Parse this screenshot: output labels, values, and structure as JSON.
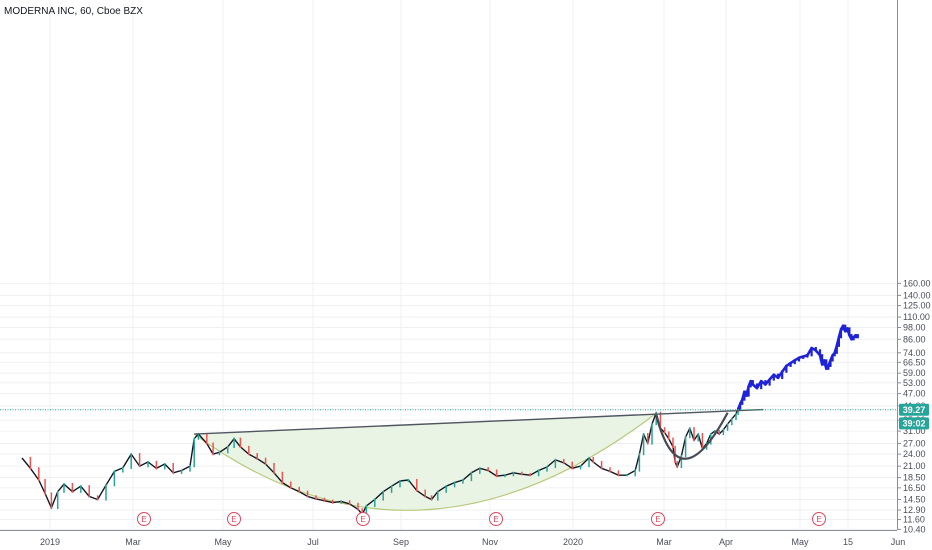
{
  "title": "MODERNA INC, 60, Cboe BZX",
  "chart_data": {
    "type": "candlestick",
    "title": "MODERNA INC, 60, Cboe BZX",
    "scale": "log",
    "ylim": [
      10.4,
      160.0
    ],
    "y_ticks": [
      160.0,
      140.0,
      125.0,
      110.0,
      98.0,
      86.0,
      74.0,
      66.5,
      59.0,
      53.0,
      47.0,
      41.0,
      35.0,
      31.0,
      27.0,
      24.0,
      21.0,
      18.5,
      16.5,
      14.5,
      12.9,
      11.6,
      10.4
    ],
    "y_tick_labels": [
      "160.00",
      "140.00",
      "125.00",
      "110.00",
      "98.00",
      "86.00",
      "74.00",
      "66.50",
      "59.00",
      "53.00",
      "47.00",
      "41.00",
      "35.00",
      "31.00",
      "27.00",
      "24.00",
      "21.00",
      "18.50",
      "16.50",
      "14.50",
      "12.90",
      "11.60",
      "10.40"
    ],
    "x_ticks": [
      "2019",
      "Mar",
      "May",
      "Jul",
      "Sep",
      "Nov",
      "2020",
      "Mar",
      "Apr",
      "May",
      "15",
      "Jun"
    ],
    "grid": true,
    "price_labels": [
      {
        "value": 39.27,
        "label": "39.27",
        "color": "#26a69a"
      },
      {
        "value": 39.02,
        "label": "39:02",
        "color": "#26a69a"
      }
    ],
    "horizontal_line": 39.27,
    "earnings_markers": [
      "E",
      "E",
      "E",
      "E",
      "E",
      "E"
    ],
    "series": [
      {
        "values": [
          [
            0.0,
            23.0
          ],
          [
            2.0,
            20.5
          ],
          [
            4.0,
            18.0
          ],
          [
            5.5,
            15.5
          ],
          [
            7.0,
            13.2
          ],
          [
            8.5,
            15.8
          ],
          [
            10.0,
            17.2
          ],
          [
            12.0,
            15.8
          ],
          [
            14.0,
            16.8
          ],
          [
            16.0,
            15.0
          ],
          [
            18.0,
            14.5
          ],
          [
            20.0,
            17.0
          ],
          [
            22.0,
            19.8
          ],
          [
            24.0,
            20.6
          ],
          [
            26.0,
            24.0
          ],
          [
            28.0,
            21.0
          ],
          [
            30.0,
            22.0
          ],
          [
            32.0,
            20.5
          ],
          [
            34.0,
            21.5
          ],
          [
            36.0,
            19.5
          ],
          [
            38.0,
            20.0
          ],
          [
            40.0,
            21.0
          ],
          [
            41.0,
            28.5
          ],
          [
            42.0,
            30.0
          ],
          [
            44.0,
            27.0
          ],
          [
            45.5,
            24.0
          ],
          [
            47.0,
            24.5
          ],
          [
            49.0,
            26.0
          ],
          [
            50.5,
            28.5
          ],
          [
            52.0,
            26.0
          ],
          [
            54.0,
            24.0
          ],
          [
            56.0,
            22.8
          ],
          [
            58.0,
            21.5
          ],
          [
            60.0,
            19.5
          ],
          [
            62.0,
            17.5
          ],
          [
            64.0,
            16.5
          ],
          [
            66.0,
            15.8
          ],
          [
            68.0,
            15.0
          ],
          [
            70.0,
            14.6
          ],
          [
            72.0,
            14.3
          ],
          [
            74.0,
            14.0
          ],
          [
            76.0,
            14.2
          ],
          [
            78.0,
            13.8
          ],
          [
            80.0,
            13.0
          ],
          [
            81.0,
            12.3
          ],
          [
            82.0,
            13.5
          ],
          [
            84.0,
            14.5
          ],
          [
            86.0,
            15.8
          ],
          [
            88.0,
            16.8
          ],
          [
            90.0,
            17.8
          ],
          [
            92.0,
            18.0
          ],
          [
            94.0,
            16.0
          ],
          [
            96.0,
            15.0
          ],
          [
            97.5,
            14.5
          ],
          [
            99.0,
            15.8
          ],
          [
            101.0,
            16.8
          ],
          [
            103.0,
            17.5
          ],
          [
            105.0,
            18.0
          ],
          [
            107.0,
            19.5
          ],
          [
            109.0,
            20.5
          ],
          [
            111.0,
            20.0
          ],
          [
            113.0,
            18.8
          ],
          [
            115.0,
            19.0
          ],
          [
            117.0,
            19.5
          ],
          [
            119.0,
            19.2
          ],
          [
            121.0,
            19.0
          ],
          [
            123.0,
            20.0
          ],
          [
            125.0,
            20.8
          ],
          [
            127.0,
            22.5
          ],
          [
            129.0,
            21.8
          ],
          [
            131.0,
            20.5
          ],
          [
            133.0,
            21.0
          ],
          [
            135.0,
            23.0
          ],
          [
            136.0,
            22.0
          ],
          [
            138.0,
            20.5
          ],
          [
            140.0,
            19.8
          ],
          [
            142.0,
            19.0
          ],
          [
            144.0,
            19.0
          ],
          [
            146.0,
            20.0
          ],
          [
            147.0,
            24.0
          ],
          [
            148.0,
            30.0
          ],
          [
            149.0,
            27.0
          ],
          [
            150.0,
            33.5
          ],
          [
            151.0,
            38.0
          ],
          [
            152.0,
            32.0
          ],
          [
            153.0,
            30.5
          ],
          [
            154.0,
            28.5
          ],
          [
            155.0,
            26.0
          ],
          [
            155.5,
            22.0
          ],
          [
            156.0,
            20.8
          ],
          [
            157.0,
            23.5
          ],
          [
            158.0,
            29.0
          ],
          [
            159.0,
            32.0
          ],
          [
            160.0,
            28.0
          ],
          [
            161.0,
            30.0
          ],
          [
            162.0,
            25.5
          ],
          [
            163.0,
            27.0
          ],
          [
            164.0,
            30.0
          ],
          [
            165.0,
            31.0
          ],
          [
            166.0,
            30.0
          ],
          [
            167.0,
            31.5
          ],
          [
            168.0,
            33.5
          ],
          [
            169.0,
            35.5
          ],
          [
            170.0,
            37.5
          ],
          [
            170.5,
            40.0
          ]
        ],
        "color": "#131722"
      },
      {
        "values": [
          [
            170.5,
            39.5
          ],
          [
            171.0,
            42.0
          ],
          [
            171.5,
            44.0
          ],
          [
            172.0,
            48.0
          ],
          [
            172.5,
            46.0
          ],
          [
            173.0,
            51.0
          ],
          [
            173.5,
            54.0
          ],
          [
            174.0,
            52.0
          ],
          [
            175.0,
            50.0
          ],
          [
            176.0,
            54.0
          ],
          [
            177.0,
            52.0
          ],
          [
            178.0,
            55.0
          ],
          [
            179.0,
            58.0
          ],
          [
            180.0,
            56.0
          ],
          [
            181.0,
            60.0
          ],
          [
            182.0,
            64.0
          ],
          [
            183.0,
            66.0
          ],
          [
            184.0,
            68.0
          ],
          [
            185.0,
            70.0
          ],
          [
            186.0,
            71.0
          ],
          [
            187.0,
            72.0
          ],
          [
            188.0,
            78.0
          ],
          [
            189.0,
            76.0
          ],
          [
            190.0,
            72.0
          ],
          [
            190.5,
            65.0
          ],
          [
            191.0,
            68.0
          ],
          [
            191.5,
            62.0
          ],
          [
            192.0,
            64.0
          ],
          [
            192.5,
            68.0
          ],
          [
            193.0,
            72.0
          ],
          [
            193.5,
            74.0
          ],
          [
            194.0,
            80.0
          ],
          [
            194.5,
            88.0
          ],
          [
            195.0,
            96.0
          ],
          [
            195.5,
            100.0
          ],
          [
            196.0,
            94.0
          ],
          [
            196.5,
            97.0
          ],
          [
            197.0,
            90.0
          ],
          [
            197.5,
            86.0
          ],
          [
            198.0,
            88.0
          ],
          [
            198.5,
            90.0
          ],
          [
            199.0,
            88.0
          ]
        ],
        "color": "#1e22d8"
      }
    ],
    "annotations": [
      {
        "kind": "trendline",
        "from": [
          41.0,
          30.0
        ],
        "to": [
          176.5,
          39.4
        ],
        "color": "#505560"
      },
      {
        "kind": "cup",
        "from": [
          41.0,
          30.0
        ],
        "low": [
          95.0,
          12.9
        ],
        "to": [
          151.0,
          37.8
        ],
        "fill": "#e7f3e2",
        "stroke": "#b8c97a"
      },
      {
        "kind": "handle",
        "from": [
          151.0,
          37.0
        ],
        "low": [
          158.0,
          22.8
        ],
        "to": [
          168.0,
          38.0
        ],
        "color": "#454a55"
      }
    ]
  }
}
